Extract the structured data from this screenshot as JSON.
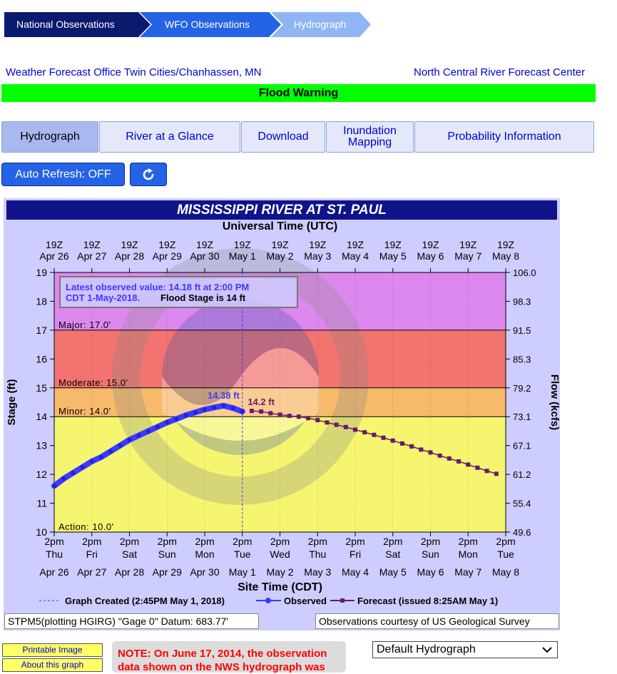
{
  "breadcrumb": [
    "National Observations",
    "WFO Observations",
    "Hydrograph"
  ],
  "office_left": "Weather Forecast Office Twin Cities/Chanhassen, MN",
  "office_right": "North Central River Forecast Center",
  "banner": "Flood Warning",
  "tabs": [
    "Hydrograph",
    "River at a Glance",
    "Download",
    "Inundation Mapping",
    "Probability Information"
  ],
  "auto_refresh_label": "Auto Refresh: OFF",
  "chart_data": {
    "type": "line",
    "title": "MISSISSIPPI RIVER AT ST. PAUL",
    "top_axis_title": "Universal Time (UTC)",
    "xlabel": "Site Time (CDT)",
    "ylabel": "Stage (ft)",
    "y2label": "Flow (kcfs)",
    "ylim": [
      10,
      19
    ],
    "yticks": [
      19,
      18,
      17,
      16,
      15,
      14,
      13,
      12,
      11,
      10
    ],
    "y2ticks": [
      "106.0",
      "98.3",
      "91.5",
      "85.3",
      "79.2",
      "73.1",
      "67.1",
      "61.2",
      "55.4",
      "49.6"
    ],
    "utc_ticks": [
      [
        "19Z",
        "Apr 26"
      ],
      [
        "19Z",
        "Apr 27"
      ],
      [
        "19Z",
        "Apr 28"
      ],
      [
        "19Z",
        "Apr 29"
      ],
      [
        "19Z",
        "Apr 30"
      ],
      [
        "19Z",
        "May 1"
      ],
      [
        "19Z",
        "May 2"
      ],
      [
        "19Z",
        "May 3"
      ],
      [
        "19Z",
        "May 4"
      ],
      [
        "19Z",
        "May 5"
      ],
      [
        "19Z",
        "May 6"
      ],
      [
        "19Z",
        "May 7"
      ],
      [
        "19Z",
        "May 8"
      ]
    ],
    "local_ticks": [
      [
        "2pm",
        "Thu",
        "Apr 26"
      ],
      [
        "2pm",
        "Fri",
        "Apr 27"
      ],
      [
        "2pm",
        "Sat",
        "Apr 28"
      ],
      [
        "2pm",
        "Sun",
        "Apr 29"
      ],
      [
        "2pm",
        "Mon",
        "Apr 30"
      ],
      [
        "2pm",
        "Tue",
        "May 1"
      ],
      [
        "2pm",
        "Wed",
        "May 2"
      ],
      [
        "2pm",
        "Thu",
        "May 3"
      ],
      [
        "2pm",
        "Fri",
        "May 4"
      ],
      [
        "2pm",
        "Sat",
        "May 5"
      ],
      [
        "2pm",
        "Sun",
        "May 6"
      ],
      [
        "2pm",
        "Mon",
        "May 7"
      ],
      [
        "2pm",
        "Tue",
        "May 8"
      ]
    ],
    "stage_bands": [
      {
        "label": "Major: 17.0'",
        "from": 17,
        "to": 19,
        "color": "#dd88ee"
      },
      {
        "label": "Moderate: 15.0'",
        "from": 15,
        "to": 17,
        "color": "#f2736f"
      },
      {
        "label": "Minor: 14.0'",
        "from": 14,
        "to": 15,
        "color": "#f7b96a"
      },
      {
        "label": "Action: 10.0'",
        "from": 10,
        "to": 14,
        "color": "#f6f570"
      }
    ],
    "latest_box": {
      "line1": "Latest observed value: 14.18 ft at 2:00 PM",
      "line2": "CDT 1-May-2018.",
      "flood_stage": "Flood Stage is 14 ft"
    },
    "peak_label": "14.38 ft",
    "forecast_start_label": "14.2 ft",
    "observed": {
      "name": "Observed",
      "x_days": [
        0,
        0.25,
        0.5,
        0.75,
        1,
        1.25,
        1.5,
        1.75,
        2,
        2.25,
        2.5,
        2.75,
        3,
        3.25,
        3.5,
        3.75,
        4,
        4.25,
        4.5,
        4.75,
        5
      ],
      "values": [
        11.6,
        11.85,
        12.05,
        12.25,
        12.45,
        12.6,
        12.8,
        13.0,
        13.2,
        13.35,
        13.5,
        13.65,
        13.8,
        13.92,
        14.05,
        14.15,
        14.25,
        14.32,
        14.38,
        14.3,
        14.18
      ]
    },
    "forecast": {
      "name": "Forecast (issued 8:25AM May 1)",
      "x_days": [
        5.25,
        5.5,
        5.75,
        6,
        6.25,
        6.5,
        6.75,
        7,
        7.25,
        7.5,
        7.75,
        8,
        8.25,
        8.5,
        8.75,
        9,
        9.25,
        9.5,
        9.75,
        10,
        10.25,
        10.5,
        10.75,
        11,
        11.25,
        11.5,
        11.75
      ],
      "values": [
        14.2,
        14.18,
        14.12,
        14.07,
        14.03,
        14.0,
        13.95,
        13.88,
        13.8,
        13.72,
        13.64,
        13.55,
        13.46,
        13.37,
        13.27,
        13.17,
        13.07,
        12.97,
        12.86,
        12.76,
        12.65,
        12.55,
        12.45,
        12.34,
        12.23,
        12.12,
        12.02
      ]
    },
    "legend": [
      "Graph Created (2:45PM May 1, 2018)",
      "Observed",
      "Forecast (issued 8:25AM May 1)"
    ],
    "footer_left": "STPM5(plotting HGIRG) \"Gage 0\" Datum: 683.77'",
    "footer_right": "Observations courtesy of US Geological Survey"
  },
  "links": [
    "Printable Image",
    "About this graph"
  ],
  "note": "NOTE: On June 17, 2014, the observation data shown on the NWS hydrograph was",
  "hydrograph_select": "Default Hydrograph",
  "colors": {
    "observed": "#3b3bff",
    "forecast": "#6a1a6a",
    "banner": "#00ff00",
    "title_bar": "#11138a"
  }
}
